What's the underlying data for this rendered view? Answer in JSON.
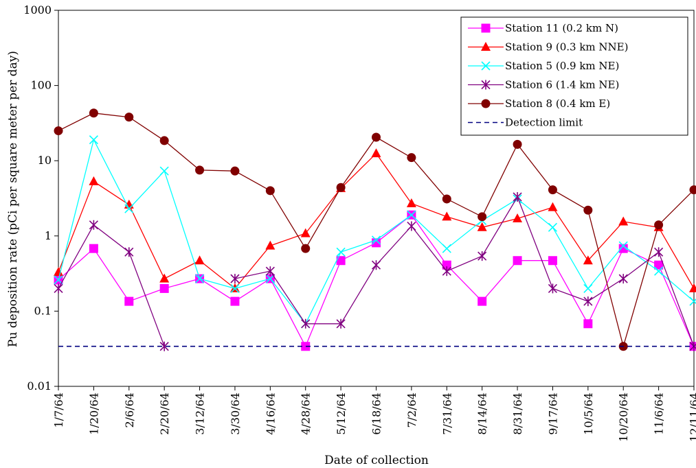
{
  "chart_data": {
    "type": "line",
    "title": "",
    "xlabel": "Date of collection",
    "ylabel": "Pu deposition rate (pCi per square meter per day)",
    "yscale": "log",
    "ylim": [
      0.01,
      1000
    ],
    "yticks": [
      {
        "value": 0.01,
        "label": "0.01"
      },
      {
        "value": 0.1,
        "label": "0.1"
      },
      {
        "value": 1,
        "label": "1"
      },
      {
        "value": 10,
        "label": "10"
      },
      {
        "value": 100,
        "label": "100"
      },
      {
        "value": 1000,
        "label": "1000"
      }
    ],
    "categories": [
      "1/7/64",
      "1/20/64",
      "2/6/64",
      "2/20/64",
      "3/12/64",
      "3/30/64",
      "4/16/64",
      "4/28/64",
      "5/12/64",
      "6/18/64",
      "7/2/64",
      "7/31/64",
      "8/14/64",
      "8/31/64",
      "9/17/64",
      "10/5/64",
      "10/20/64",
      "11/6/64",
      "12/11/64"
    ],
    "grid": false,
    "legend_position": "top-right",
    "series": [
      {
        "name": "Station 11 (0.2 km N)",
        "color": "#ff00ff",
        "marker": "square",
        "values": [
          0.26,
          0.68,
          0.135,
          0.2,
          0.27,
          0.135,
          0.27,
          0.034,
          0.47,
          0.81,
          1.9,
          0.41,
          0.135,
          0.47,
          0.47,
          0.068,
          0.68,
          0.41,
          0.034
        ]
      },
      {
        "name": "Station 9 (0.3 km NNE)",
        "color": "#ff0000",
        "marker": "triangle",
        "values": [
          0.33,
          5.3,
          2.6,
          0.27,
          0.47,
          0.2,
          0.74,
          1.08,
          4.3,
          12.5,
          2.7,
          1.8,
          1.3,
          1.7,
          2.4,
          0.47,
          1.55,
          1.3,
          0.2
        ]
      },
      {
        "name": "Station 5 (0.9 km NE)",
        "color": "#00ffff",
        "marker": "x",
        "values": [
          0.26,
          19,
          2.3,
          7.3,
          0.27,
          0.2,
          0.27,
          0.068,
          0.61,
          0.88,
          1.9,
          0.68,
          1.6,
          3.1,
          1.3,
          0.2,
          0.74,
          0.34,
          0.135
        ]
      },
      {
        "name": "Station 6 (1.4 km NE)",
        "color": "#800080",
        "marker": "asterisk",
        "values": [
          0.2,
          1.4,
          0.61,
          0.034,
          null,
          0.27,
          0.34,
          0.068,
          0.068,
          0.41,
          1.35,
          0.34,
          0.54,
          3.3,
          0.2,
          0.135,
          0.27,
          0.61,
          0.034
        ]
      },
      {
        "name": "Station 8 (0.4 km E)",
        "color": "#800000",
        "marker": "circle",
        "values": [
          25,
          43,
          38,
          18.5,
          7.5,
          7.3,
          4,
          0.68,
          4.4,
          20.5,
          11,
          3.1,
          1.8,
          16.5,
          4.1,
          2.2,
          0.034,
          1.4,
          4.1
        ]
      },
      {
        "name": "Detection limit",
        "color": "#000080",
        "marker": "none",
        "dashed": true,
        "values": [
          0.034,
          0.034,
          0.034,
          0.034,
          0.034,
          0.034,
          0.034,
          0.034,
          0.034,
          0.034,
          0.034,
          0.034,
          0.034,
          0.034,
          0.034,
          0.034,
          0.034,
          0.034,
          0.034
        ]
      }
    ]
  }
}
